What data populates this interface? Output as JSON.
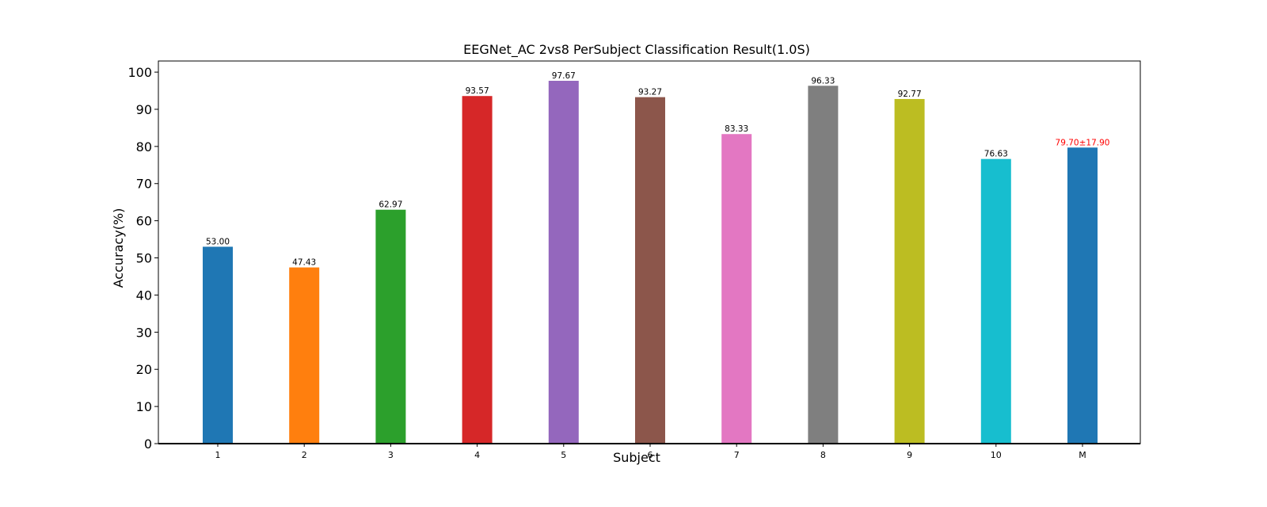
{
  "chart_data": {
    "type": "bar",
    "title": "EEGNet_AC 2vs8 PerSubject Classification Result(1.0S)",
    "xlabel": "Subject",
    "ylabel": "Accuracy(%)",
    "ylim": [
      0,
      103
    ],
    "yticks": [
      "0",
      "10",
      "20",
      "30",
      "40",
      "50",
      "60",
      "70",
      "80",
      "90",
      "100"
    ],
    "grid": false,
    "categories": [
      "1",
      "2",
      "3",
      "4",
      "5",
      "6",
      "7",
      "8",
      "9",
      "10",
      "M"
    ],
    "values": [
      53.0,
      47.43,
      62.97,
      93.57,
      97.67,
      93.27,
      83.33,
      96.33,
      92.77,
      76.63,
      79.7
    ],
    "labels": [
      "53.00",
      "47.43",
      "62.97",
      "93.57",
      "97.67",
      "93.27",
      "83.33",
      "96.33",
      "92.77",
      "76.63",
      "79.70±17.90"
    ],
    "colors": [
      "#1f77b4",
      "#ff7f0e",
      "#2ca02c",
      "#d62728",
      "#9467bd",
      "#8c564b",
      "#e377c2",
      "#7f7f7f",
      "#bcbd22",
      "#17becf",
      "#1f77b4"
    ],
    "label_colors": [
      "#000000",
      "#000000",
      "#000000",
      "#000000",
      "#000000",
      "#000000",
      "#000000",
      "#000000",
      "#000000",
      "#000000",
      "#ff0000"
    ]
  }
}
